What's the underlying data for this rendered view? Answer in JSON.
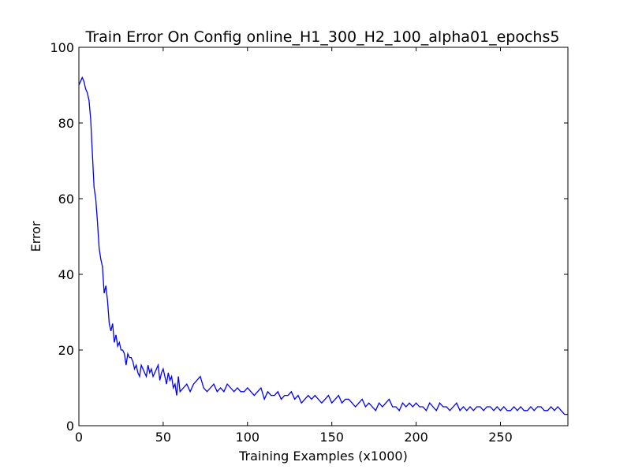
{
  "chart_data": {
    "type": "line",
    "title": "Train Error On Config online_H1_300_H2_100_alpha01_epochs5",
    "xlabel": "Training Examples (x1000)",
    "ylabel": "Error",
    "xlim": [
      0,
      290
    ],
    "ylim": [
      0,
      100
    ],
    "xticks": [
      0,
      50,
      100,
      150,
      200,
      250
    ],
    "yticks": [
      0,
      20,
      40,
      60,
      80,
      100
    ],
    "grid": false,
    "line_color": "#0000ff",
    "series": [
      {
        "name": "train error",
        "x": [
          0,
          1,
          2,
          3,
          4,
          5,
          6,
          7,
          8,
          9,
          10,
          11,
          12,
          13,
          14,
          15,
          16,
          17,
          18,
          19,
          20,
          21,
          22,
          23,
          24,
          25,
          26,
          27,
          28,
          29,
          30,
          31,
          32,
          33,
          34,
          35,
          36,
          37,
          38,
          39,
          40,
          41,
          42,
          43,
          44,
          45,
          46,
          47,
          48,
          49,
          50,
          51,
          52,
          53,
          54,
          55,
          56,
          57,
          58,
          59,
          60,
          62,
          64,
          66,
          68,
          70,
          72,
          74,
          76,
          78,
          80,
          82,
          84,
          86,
          88,
          90,
          92,
          94,
          96,
          98,
          100,
          102,
          104,
          106,
          108,
          110,
          112,
          114,
          116,
          118,
          120,
          122,
          124,
          126,
          128,
          130,
          132,
          134,
          136,
          138,
          140,
          142,
          144,
          146,
          148,
          150,
          152,
          154,
          156,
          158,
          160,
          162,
          164,
          166,
          168,
          170,
          172,
          174,
          176,
          178,
          180,
          182,
          184,
          186,
          188,
          190,
          192,
          194,
          196,
          198,
          200,
          202,
          204,
          206,
          208,
          210,
          212,
          214,
          216,
          218,
          220,
          222,
          224,
          226,
          228,
          230,
          232,
          234,
          236,
          238,
          240,
          242,
          244,
          246,
          248,
          250,
          252,
          254,
          256,
          258,
          260,
          262,
          264,
          266,
          268,
          270,
          272,
          274,
          276,
          278,
          280,
          282,
          284,
          286,
          288,
          290
        ],
        "values": [
          90,
          91,
          92,
          91,
          89,
          88,
          86,
          81,
          72,
          63,
          60,
          54,
          47,
          44,
          42,
          35,
          37,
          33,
          27,
          25,
          27,
          22,
          24,
          21,
          22,
          20,
          20,
          19,
          16,
          19,
          18,
          18,
          17,
          15,
          16,
          14,
          13,
          16,
          15,
          14,
          13,
          16,
          14,
          15,
          13,
          14,
          15,
          16,
          12,
          14,
          15,
          13,
          11,
          14,
          12,
          13,
          10,
          11,
          8,
          13,
          9,
          10,
          11,
          9,
          11,
          12,
          13,
          10,
          9,
          10,
          11,
          9,
          10,
          9,
          11,
          10,
          9,
          10,
          9,
          9,
          10,
          9,
          8,
          9,
          10,
          7,
          9,
          8,
          8,
          9,
          7,
          8,
          8,
          9,
          7,
          8,
          6,
          7,
          8,
          7,
          8,
          7,
          6,
          7,
          8,
          6,
          7,
          8,
          6,
          7,
          7,
          6,
          5,
          6,
          7,
          5,
          6,
          5,
          4,
          6,
          5,
          6,
          7,
          5,
          5,
          4,
          6,
          5,
          6,
          5,
          6,
          5,
          5,
          4,
          6,
          5,
          4,
          6,
          5,
          5,
          4,
          5,
          6,
          4,
          5,
          4,
          5,
          4,
          5,
          5,
          4,
          5,
          5,
          4,
          5,
          4,
          5,
          4,
          4,
          5,
          4,
          5,
          4,
          4,
          5,
          4,
          5,
          5,
          4,
          4,
          5,
          4,
          5,
          4,
          3,
          3
        ]
      }
    ]
  }
}
